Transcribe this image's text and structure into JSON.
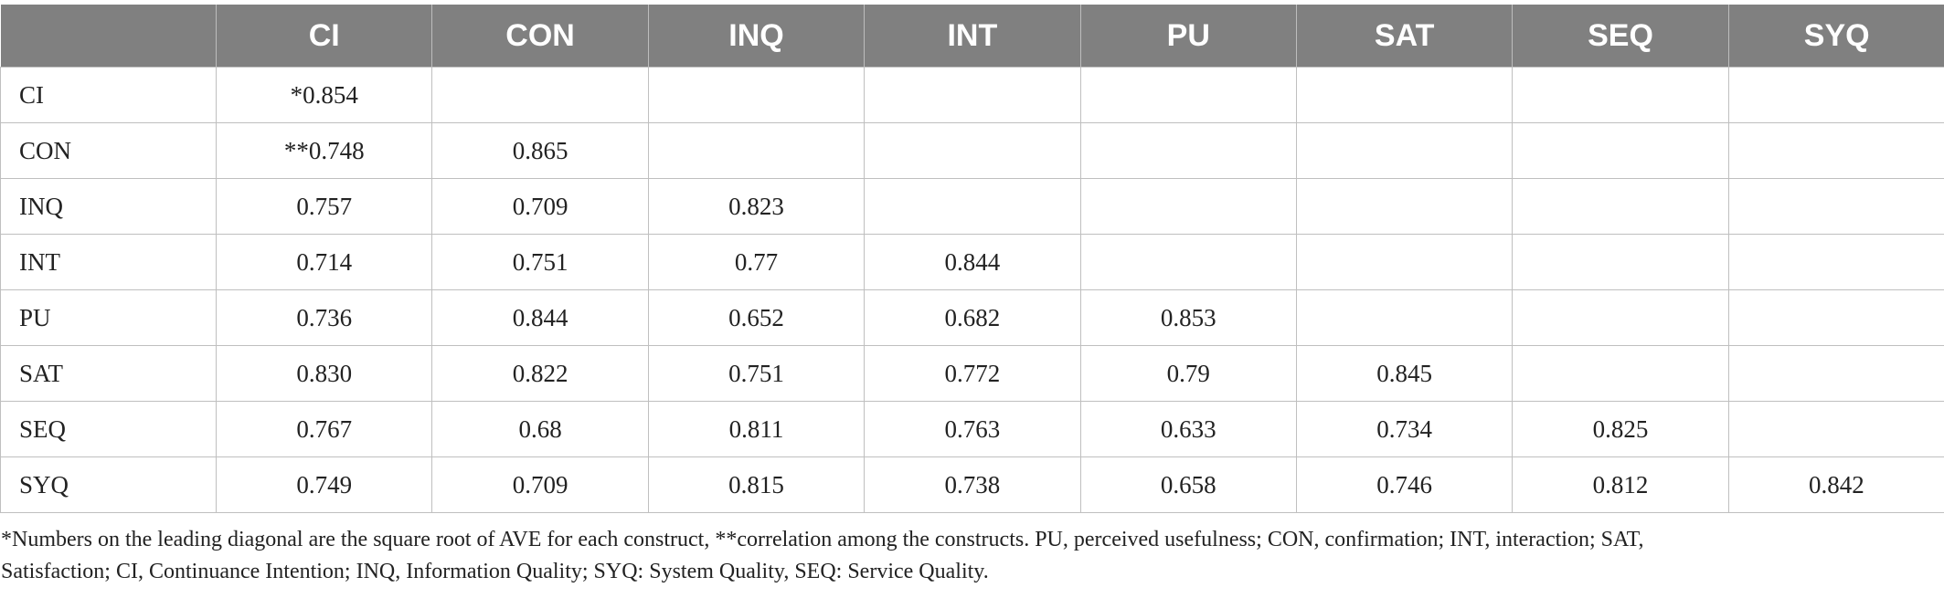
{
  "table": {
    "columns": [
      "",
      "CI",
      "CON",
      "INQ",
      "INT",
      "PU",
      "SAT",
      "SEQ",
      "SYQ"
    ],
    "rows": [
      {
        "label": "CI",
        "cells": [
          "*0.854",
          "",
          "",
          "",
          "",
          "",
          "",
          ""
        ]
      },
      {
        "label": "CON",
        "cells": [
          "**0.748",
          "0.865",
          "",
          "",
          "",
          "",
          "",
          ""
        ]
      },
      {
        "label": "INQ",
        "cells": [
          "0.757",
          "0.709",
          "0.823",
          "",
          "",
          "",
          "",
          ""
        ]
      },
      {
        "label": "INT",
        "cells": [
          "0.714",
          "0.751",
          "0.77",
          "0.844",
          "",
          "",
          "",
          ""
        ]
      },
      {
        "label": "PU",
        "cells": [
          "0.736",
          "0.844",
          "0.652",
          "0.682",
          "0.853",
          "",
          "",
          ""
        ]
      },
      {
        "label": "SAT",
        "cells": [
          "0.830",
          "0.822",
          "0.751",
          "0.772",
          "0.79",
          "0.845",
          "",
          ""
        ]
      },
      {
        "label": "SEQ",
        "cells": [
          "0.767",
          "0.68",
          "0.811",
          "0.763",
          "0.633",
          "0.734",
          "0.825",
          ""
        ]
      },
      {
        "label": "SYQ",
        "cells": [
          "0.749",
          "0.709",
          "0.815",
          "0.738",
          "0.658",
          "0.746",
          "0.812",
          "0.842"
        ]
      }
    ]
  },
  "footnote": {
    "line1": "*Numbers on the leading diagonal are the square root of AVE for each construct, **correlation among the constructs. PU, perceived usefulness; CON, confirmation; INT, interaction; SAT,",
    "line2": "Satisfaction; CI, Continuance Intention; INQ, Information Quality; SYQ: System Quality, SEQ: Service Quality."
  }
}
